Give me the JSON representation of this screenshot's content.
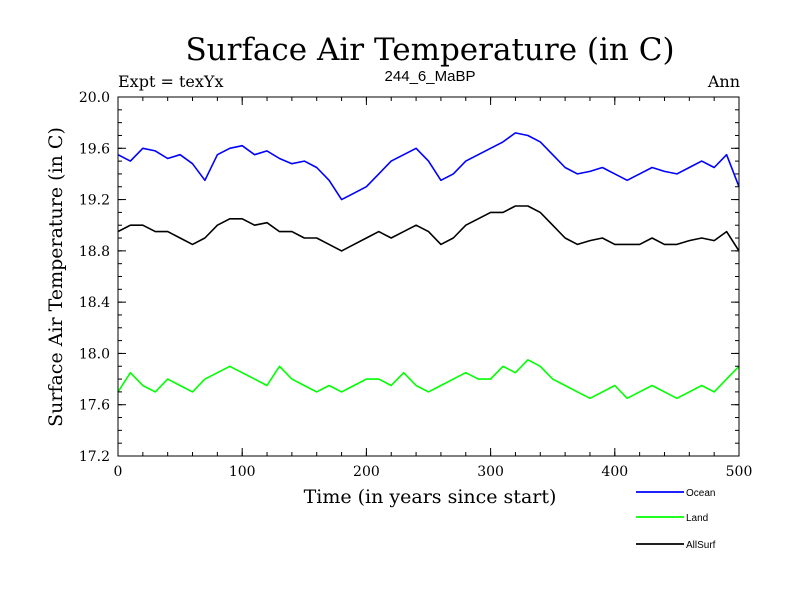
{
  "chart_data": {
    "type": "line",
    "title": "Surface Air Temperature (in C)",
    "subtitle": "244_6_MaBP",
    "expt_label": "Expt = texYx",
    "season_label": "Ann",
    "xlabel": "Time (in years since start)",
    "ylabel": "Surface Air Temperature (in C)",
    "xlim": [
      0,
      500
    ],
    "ylim": [
      17.2,
      20.0
    ],
    "x_ticks": [
      0,
      100,
      200,
      300,
      400,
      500
    ],
    "y_ticks": [
      "17.2",
      "17.6",
      "18.0",
      "18.4",
      "18.8",
      "19.2",
      "19.6",
      "20.0"
    ],
    "grid": false,
    "legend_position": "bottom-right, below plot",
    "series": [
      {
        "name": "Ocean",
        "color": "#0000ff",
        "x": [
          0,
          10,
          20,
          30,
          40,
          50,
          60,
          70,
          80,
          90,
          100,
          110,
          120,
          130,
          140,
          150,
          160,
          170,
          180,
          190,
          200,
          210,
          220,
          230,
          240,
          250,
          260,
          270,
          280,
          290,
          300,
          310,
          320,
          330,
          340,
          350,
          360,
          370,
          380,
          390,
          400,
          410,
          420,
          430,
          440,
          450,
          460,
          470,
          480,
          490,
          500
        ],
        "values": [
          19.55,
          19.5,
          19.6,
          19.58,
          19.52,
          19.55,
          19.48,
          19.35,
          19.55,
          19.6,
          19.62,
          19.55,
          19.58,
          19.52,
          19.48,
          19.5,
          19.45,
          19.35,
          19.2,
          19.25,
          19.3,
          19.4,
          19.5,
          19.55,
          19.6,
          19.5,
          19.35,
          19.4,
          19.5,
          19.55,
          19.6,
          19.65,
          19.72,
          19.7,
          19.65,
          19.55,
          19.45,
          19.4,
          19.42,
          19.45,
          19.4,
          19.35,
          19.4,
          19.45,
          19.42,
          19.4,
          19.45,
          19.5,
          19.45,
          19.55,
          19.3
        ]
      },
      {
        "name": "Land",
        "color": "#00ff00",
        "x": [
          0,
          10,
          20,
          30,
          40,
          50,
          60,
          70,
          80,
          90,
          100,
          110,
          120,
          130,
          140,
          150,
          160,
          170,
          180,
          190,
          200,
          210,
          220,
          230,
          240,
          250,
          260,
          270,
          280,
          290,
          300,
          310,
          320,
          330,
          340,
          350,
          360,
          370,
          380,
          390,
          400,
          410,
          420,
          430,
          440,
          450,
          460,
          470,
          480,
          490,
          500
        ],
        "values": [
          17.7,
          17.85,
          17.75,
          17.7,
          17.8,
          17.75,
          17.7,
          17.8,
          17.85,
          17.9,
          17.85,
          17.8,
          17.75,
          17.9,
          17.8,
          17.75,
          17.7,
          17.75,
          17.7,
          17.75,
          17.8,
          17.8,
          17.75,
          17.85,
          17.75,
          17.7,
          17.75,
          17.8,
          17.85,
          17.8,
          17.8,
          17.9,
          17.85,
          17.95,
          17.9,
          17.8,
          17.75,
          17.7,
          17.65,
          17.7,
          17.75,
          17.65,
          17.7,
          17.75,
          17.7,
          17.65,
          17.7,
          17.75,
          17.7,
          17.8,
          17.9
        ]
      },
      {
        "name": "AllSurf",
        "color": "#000000",
        "x": [
          0,
          10,
          20,
          30,
          40,
          50,
          60,
          70,
          80,
          90,
          100,
          110,
          120,
          130,
          140,
          150,
          160,
          170,
          180,
          190,
          200,
          210,
          220,
          230,
          240,
          250,
          260,
          270,
          280,
          290,
          300,
          310,
          320,
          330,
          340,
          350,
          360,
          370,
          380,
          390,
          400,
          410,
          420,
          430,
          440,
          450,
          460,
          470,
          480,
          490,
          500
        ],
        "values": [
          18.95,
          19.0,
          19.0,
          18.95,
          18.95,
          18.9,
          18.85,
          18.9,
          19.0,
          19.05,
          19.05,
          19.0,
          19.02,
          18.95,
          18.95,
          18.9,
          18.9,
          18.85,
          18.8,
          18.85,
          18.9,
          18.95,
          18.9,
          18.95,
          19.0,
          18.95,
          18.85,
          18.9,
          19.0,
          19.05,
          19.1,
          19.1,
          19.15,
          19.15,
          19.1,
          19.0,
          18.9,
          18.85,
          18.88,
          18.9,
          18.85,
          18.85,
          18.85,
          18.9,
          18.85,
          18.85,
          18.88,
          18.9,
          18.88,
          18.95,
          18.8
        ]
      }
    ]
  }
}
